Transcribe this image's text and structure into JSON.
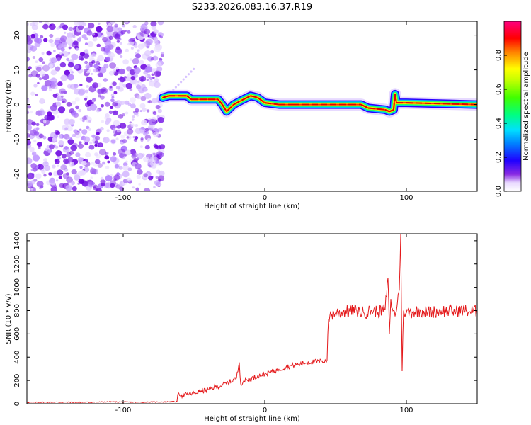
{
  "figure": {
    "title": "S233.2026.083.16.37.R19"
  },
  "chart_data": [
    {
      "type": "heatmap",
      "name": "spectrogram",
      "xlabel": "Height of straight line (km)",
      "ylabel": "Frequency (Hz)",
      "xlim": [
        -168,
        150
      ],
      "ylim": [
        -25,
        24
      ],
      "x_ticks": [
        -100,
        0,
        100
      ],
      "y_ticks": [
        -20,
        -10,
        0,
        10,
        20
      ],
      "noise_region_x": [
        -168,
        -72
      ],
      "signal_x_start": -72,
      "signal_track": [
        {
          "x": -72,
          "f": 2.0
        },
        {
          "x": -68,
          "f": 2.5
        },
        {
          "x": -60,
          "f": 2.5
        },
        {
          "x": -55,
          "f": 2.5
        },
        {
          "x": -52,
          "f": 1.5
        },
        {
          "x": -40,
          "f": 1.5
        },
        {
          "x": -33,
          "f": 1.5
        },
        {
          "x": -30,
          "f": 0.0
        },
        {
          "x": -27,
          "f": -2.0
        },
        {
          "x": -22,
          "f": 0.0
        },
        {
          "x": -15,
          "f": 1.5
        },
        {
          "x": -10,
          "f": 2.5
        },
        {
          "x": -5,
          "f": 2.0
        },
        {
          "x": 0,
          "f": 0.5
        },
        {
          "x": 10,
          "f": 0.0
        },
        {
          "x": 20,
          "f": 0.0
        },
        {
          "x": 60,
          "f": 0.0
        },
        {
          "x": 68,
          "f": 0.0
        },
        {
          "x": 73,
          "f": -1.0
        },
        {
          "x": 85,
          "f": -1.5
        },
        {
          "x": 88,
          "f": -2.0
        },
        {
          "x": 91,
          "f": -1.5
        },
        {
          "x": 92,
          "f": 3.0
        },
        {
          "x": 93,
          "f": 0.5
        },
        {
          "x": 100,
          "f": 0.5
        },
        {
          "x": 150,
          "f": 0.0
        }
      ],
      "colorbar": {
        "label": "Normalized spectral amplitude",
        "range": [
          0.0,
          1.0
        ],
        "ticks": [
          0.0,
          0.2,
          0.4,
          0.6,
          0.8
        ],
        "tick_labels": [
          "0.0",
          "0.2",
          "0.4",
          "0.6",
          "0.8"
        ],
        "colors": [
          "#ffffff",
          "#e8d8ff",
          "#8a2be2",
          "#2000ff",
          "#0080ff",
          "#00e0ff",
          "#00ff80",
          "#40ff00",
          "#c0ff00",
          "#ffff00",
          "#ff8000",
          "#ff0000",
          "#ff0080"
        ]
      }
    },
    {
      "type": "line",
      "name": "snr",
      "xlabel": "Height of straight line (km)",
      "ylabel": "SNR (10 * v/v)",
      "xlim": [
        -168,
        150
      ],
      "ylim": [
        0,
        1460
      ],
      "x_ticks": [
        -100,
        0,
        100
      ],
      "y_ticks": [
        0,
        200,
        400,
        600,
        800,
        1000,
        1200,
        1400
      ],
      "line_color": "#e41a1c",
      "series": [
        {
          "x": [
            -168,
            -150,
            -130,
            -110,
            -90,
            -75,
            -62,
            -61,
            -58,
            -55,
            -50,
            -45,
            -40,
            -35,
            -30,
            -25,
            -20,
            -18,
            -17,
            -15,
            -10,
            -5,
            0,
            5,
            10,
            15,
            20,
            25,
            30,
            35,
            40,
            44,
            45,
            46,
            50,
            55,
            60,
            65,
            70,
            75,
            80,
            85,
            87,
            88,
            89,
            90,
            92,
            95,
            96,
            97,
            98,
            100,
            105,
            110,
            115,
            120,
            125,
            130,
            135,
            140,
            145,
            150
          ],
          "y": [
            12,
            14,
            12,
            16,
            13,
            15,
            18,
            95,
            70,
            80,
            90,
            110,
            120,
            145,
            160,
            185,
            220,
            355,
            170,
            195,
            215,
            240,
            255,
            275,
            295,
            315,
            330,
            340,
            355,
            360,
            365,
            375,
            720,
            760,
            780,
            790,
            795,
            800,
            780,
            800,
            790,
            810,
            1080,
            600,
            900,
            820,
            750,
            980,
            1460,
            280,
            800,
            780,
            790,
            800,
            785,
            790,
            800,
            795,
            790,
            805,
            790,
            800
          ]
        }
      ]
    }
  ]
}
